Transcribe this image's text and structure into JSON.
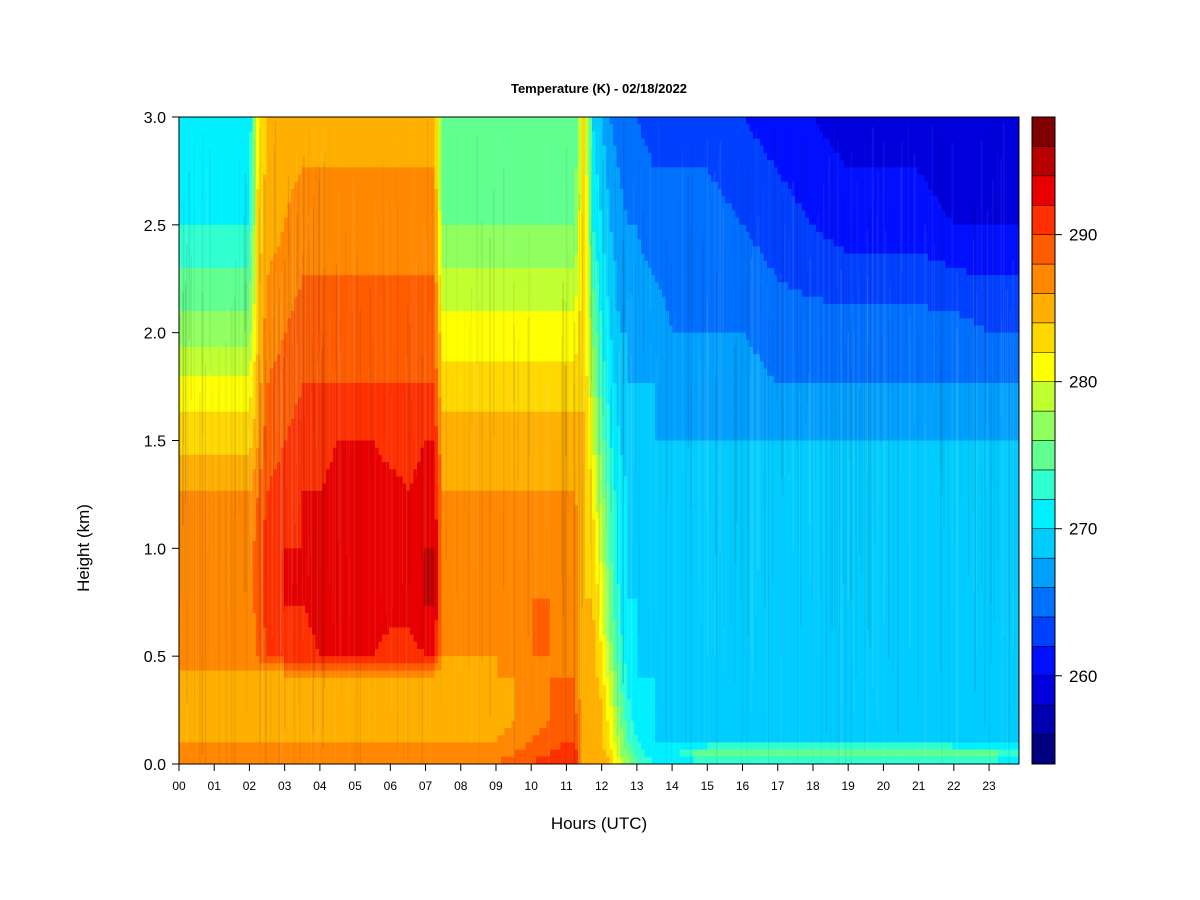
{
  "chart_data": {
    "type": "heatmap",
    "title": "Temperature (K) - 02/18/2022",
    "xlabel": "Hours (UTC)",
    "ylabel": "Height (km)",
    "xlim": [
      0,
      23.85
    ],
    "ylim": [
      0,
      3.0
    ],
    "x_tick_labels": [
      "00",
      "01",
      "02",
      "03",
      "04",
      "05",
      "06",
      "07",
      "08",
      "09",
      "10",
      "11",
      "12",
      "13",
      "14",
      "15",
      "16",
      "17",
      "18",
      "19",
      "20",
      "21",
      "22",
      "23"
    ],
    "y_tick_labels": [
      "0.0",
      "0.5",
      "1.0",
      "1.5",
      "2.0",
      "2.5",
      "3.0"
    ],
    "colorbar": {
      "range": [
        254,
        298
      ],
      "levels": [
        254,
        256,
        258,
        260,
        262,
        264,
        266,
        268,
        270,
        272,
        274,
        276,
        278,
        280,
        282,
        284,
        286,
        288,
        290,
        292,
        294,
        296,
        298
      ],
      "ticks": [
        260,
        270,
        280,
        290
      ],
      "tick_labels": [
        "260",
        "270",
        "280",
        "290"
      ],
      "colors": [
        "#000080",
        "#0000b0",
        "#0000dd",
        "#0010ff",
        "#0040ff",
        "#0070ff",
        "#00a0ff",
        "#00ccff",
        "#00f0ff",
        "#30ffd0",
        "#60ff90",
        "#90ff60",
        "#c0ff30",
        "#ffff00",
        "#ffd800",
        "#ffaf00",
        "#ff8800",
        "#ff5c00",
        "#ff3000",
        "#e80000",
        "#b80000",
        "#800000"
      ]
    },
    "hours": [
      0,
      0.5,
      1,
      1.5,
      2,
      2.25,
      2.5,
      3,
      3.5,
      4,
      4.5,
      5,
      5.5,
      6,
      6.5,
      7,
      7.25,
      7.5,
      8,
      8.5,
      9,
      9.5,
      10,
      10.5,
      11,
      11.25,
      11.5,
      11.75,
      12,
      12.25,
      12.5,
      12.75,
      13,
      13.5,
      14,
      15,
      16,
      17,
      18,
      19,
      20,
      21,
      22,
      23,
      23.85
    ],
    "heights_km": [
      0,
      0.05,
      0.1,
      0.2,
      0.3,
      0.4,
      0.5,
      0.75,
      1.0,
      1.25,
      1.5,
      1.75,
      2.0,
      2.5,
      3.0
    ],
    "temperature_K": [
      [
        287,
        287,
        287,
        287,
        287,
        287,
        287,
        287,
        287,
        287,
        287,
        287,
        287,
        287,
        287,
        287,
        287,
        287,
        287,
        287,
        288,
        289,
        290,
        291,
        292,
        292,
        284,
        285,
        285,
        284,
        280,
        277,
        274,
        272,
        271,
        271,
        271,
        271,
        271,
        271,
        271,
        271,
        271,
        271,
        271
      ],
      [
        287,
        287,
        287,
        287,
        287,
        287,
        287,
        287,
        287,
        287,
        287,
        287,
        287,
        287,
        287,
        287,
        287,
        287,
        287,
        287,
        287,
        288,
        289,
        290,
        291,
        291,
        284,
        285,
        285,
        283,
        279,
        275,
        273,
        271,
        271,
        276,
        276,
        276,
        276,
        276,
        276,
        276,
        276,
        275,
        272
      ],
      [
        286,
        286,
        286,
        286,
        286,
        286,
        286,
        286,
        286,
        286,
        286,
        286,
        286,
        286,
        286,
        286,
        286,
        286,
        286,
        286,
        286,
        287,
        288,
        289,
        290,
        290,
        284,
        285,
        284,
        282,
        278,
        274,
        272,
        270,
        270,
        270,
        270,
        270,
        270,
        270,
        270,
        270,
        270,
        270,
        269
      ],
      [
        285,
        285,
        285,
        285,
        285,
        285,
        285,
        285,
        285,
        285,
        285,
        285,
        285,
        285,
        285,
        285,
        285,
        285,
        285,
        285,
        285,
        286,
        287,
        288,
        289,
        289,
        284,
        285,
        284,
        281,
        276,
        273,
        271,
        270,
        269,
        269,
        269,
        269,
        269,
        269,
        269,
        269,
        269,
        269,
        269
      ],
      [
        285,
        285,
        285,
        285,
        285,
        285,
        285,
        285,
        285,
        285,
        285,
        285,
        285,
        285,
        285,
        285,
        285,
        285,
        285,
        285,
        285,
        286,
        287,
        288,
        288,
        288,
        284,
        285,
        284,
        280,
        275,
        272,
        271,
        270,
        269,
        269,
        269,
        269,
        269,
        269,
        269,
        269,
        269,
        269,
        269
      ],
      [
        285,
        285,
        285,
        285,
        285,
        285,
        285,
        285,
        285,
        285,
        285,
        285,
        285,
        285,
        285,
        285,
        285,
        285,
        285,
        285,
        286,
        286,
        287,
        288,
        288,
        288,
        284,
        285,
        283,
        279,
        274,
        272,
        270,
        270,
        269,
        269,
        269,
        269,
        269,
        269,
        269,
        269,
        269,
        269,
        269
      ],
      [
        287,
        287,
        287,
        287,
        287,
        288,
        290,
        291,
        291,
        292,
        292,
        292,
        292,
        291,
        291,
        292,
        292,
        286,
        286,
        286,
        286,
        287,
        288,
        288,
        287,
        287,
        284,
        285,
        282,
        277,
        273,
        271,
        270,
        269,
        269,
        269,
        269,
        269,
        269,
        269,
        269,
        269,
        269,
        269,
        269
      ],
      [
        287,
        287,
        287,
        287,
        287,
        289,
        291,
        292,
        292,
        293,
        293,
        293,
        293,
        293,
        293,
        294,
        294,
        287,
        287,
        287,
        287,
        287,
        288,
        288,
        287,
        287,
        284,
        284,
        281,
        275,
        272,
        270,
        270,
        269,
        269,
        269,
        269,
        269,
        269,
        269,
        269,
        269,
        269,
        269,
        269
      ],
      [
        287,
        287,
        287,
        287,
        287,
        289,
        291,
        292,
        292,
        293,
        293,
        294,
        293,
        293,
        293,
        294,
        294,
        287,
        287,
        287,
        287,
        287,
        287,
        287,
        287,
        287,
        284,
        283,
        279,
        274,
        271,
        270,
        269,
        269,
        269,
        269,
        269,
        269,
        269,
        269,
        269,
        269,
        269,
        269,
        269
      ],
      [
        286,
        286,
        286,
        286,
        286,
        288,
        290,
        291,
        292,
        292,
        293,
        293,
        293,
        293,
        292,
        293,
        293,
        286,
        286,
        286,
        286,
        286,
        286,
        286,
        286,
        286,
        284,
        282,
        277,
        273,
        271,
        270,
        269,
        269,
        269,
        269,
        269,
        269,
        269,
        269,
        269,
        269,
        269,
        269,
        269
      ],
      [
        283,
        283,
        283,
        283,
        283,
        286,
        289,
        290,
        291,
        291,
        292,
        292,
        292,
        291,
        291,
        292,
        292,
        285,
        285,
        285,
        285,
        285,
        285,
        285,
        285,
        285,
        284,
        280,
        275,
        272,
        270,
        269,
        269,
        268,
        268,
        268,
        268,
        268,
        268,
        268,
        268,
        268,
        268,
        268,
        268
      ],
      [
        281,
        281,
        281,
        281,
        281,
        285,
        288,
        289,
        290,
        290,
        290,
        290,
        290,
        290,
        290,
        290,
        290,
        283,
        283,
        283,
        283,
        283,
        283,
        283,
        283,
        283,
        284,
        278,
        273,
        271,
        269,
        268,
        268,
        268,
        267,
        267,
        267,
        266,
        266,
        266,
        266,
        266,
        266,
        266,
        266
      ],
      [
        277,
        277,
        277,
        277,
        277,
        284,
        287,
        288,
        289,
        289,
        289,
        289,
        289,
        289,
        289,
        289,
        289,
        281,
        281,
        281,
        281,
        281,
        281,
        281,
        281,
        281,
        284,
        276,
        272,
        270,
        268,
        268,
        267,
        267,
        266,
        266,
        266,
        265,
        265,
        265,
        265,
        265,
        265,
        264,
        264
      ],
      [
        272,
        272,
        272,
        272,
        272,
        283,
        285,
        286,
        287,
        287,
        287,
        287,
        287,
        287,
        287,
        287,
        287,
        276,
        276,
        276,
        276,
        276,
        276,
        276,
        276,
        276,
        284,
        272,
        270,
        268,
        267,
        266,
        266,
        265,
        265,
        265,
        264,
        263,
        262,
        261,
        261,
        261,
        260,
        260,
        260
      ],
      [
        270,
        270,
        270,
        270,
        270,
        282,
        284,
        285,
        285,
        285,
        285,
        285,
        285,
        285,
        285,
        285,
        285,
        274,
        274,
        274,
        274,
        274,
        274,
        274,
        274,
        274,
        284,
        270,
        268,
        266,
        265,
        264,
        264,
        263,
        263,
        263,
        262,
        261,
        260,
        259,
        259,
        259,
        258,
        258,
        258
      ]
    ]
  }
}
